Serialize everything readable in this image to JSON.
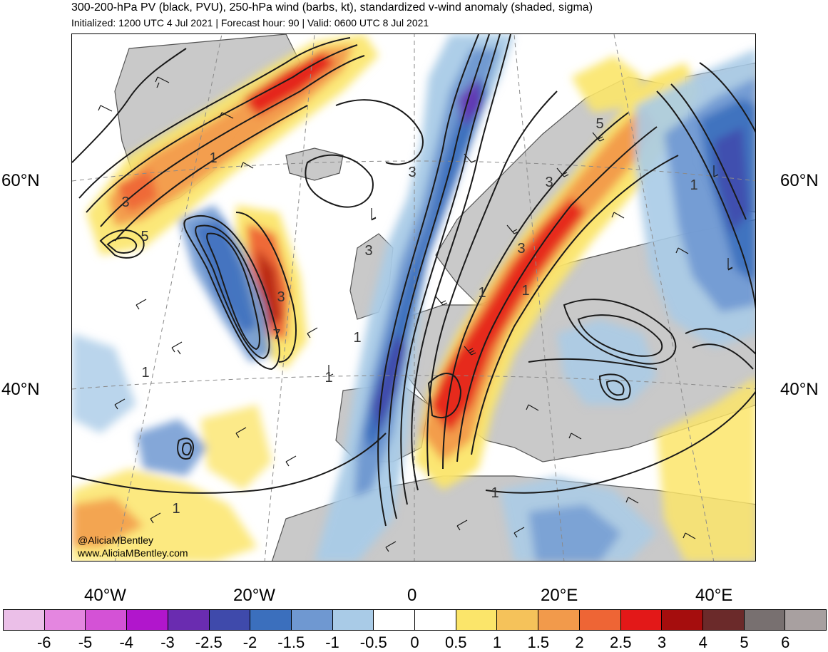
{
  "header": {
    "title": "300-200-hPa PV (black, PVU), 250-hPa wind (barbs, kt), standardized v-wind anomaly (shaded, sigma)",
    "subtitle": "Initialized: 1200 UTC 4 Jul 2021 | Forecast hour: 90 | Valid: 0600 UTC 8 Jul 2021"
  },
  "map": {
    "lat_labels": [
      "60°N",
      "40°N"
    ],
    "lon_labels": [
      "40°W",
      "20°W",
      "0",
      "20°E",
      "40°E"
    ],
    "contour_labels": [
      "1",
      "3",
      "5",
      "3",
      "7",
      "3",
      "3",
      "1",
      "1",
      "1",
      "1",
      "3",
      "5",
      "1",
      "3",
      "1",
      "1",
      "1"
    ],
    "watermark_handle": "@AliciaMBentley",
    "watermark_url": "www.AliciaMBentley.com",
    "colors": {
      "land": "#c9c9c9",
      "coast": "#555555",
      "contour": "#1a1a1a",
      "grid": "#8a8a8a"
    }
  },
  "colorbar": {
    "ticks": [
      "-6",
      "-5",
      "-4",
      "-3",
      "-2.5",
      "-2",
      "-1.5",
      "-1",
      "-0.5",
      "0",
      "0.5",
      "1",
      "1.5",
      "2",
      "2.5",
      "3",
      "4",
      "5",
      "6"
    ],
    "colors": [
      "#ebbfe8",
      "#e486e0",
      "#d452d6",
      "#b116cc",
      "#6a2cb0",
      "#3f4aab",
      "#3b6fbd",
      "#6f98d1",
      "#a9cbe7",
      "#ffffff",
      "#ffffff",
      "#fbe56a",
      "#f5c25a",
      "#f29a4b",
      "#ee6535",
      "#e31818",
      "#a50d0d",
      "#6b2a2a",
      "#787070",
      "#a8a0a0"
    ]
  }
}
